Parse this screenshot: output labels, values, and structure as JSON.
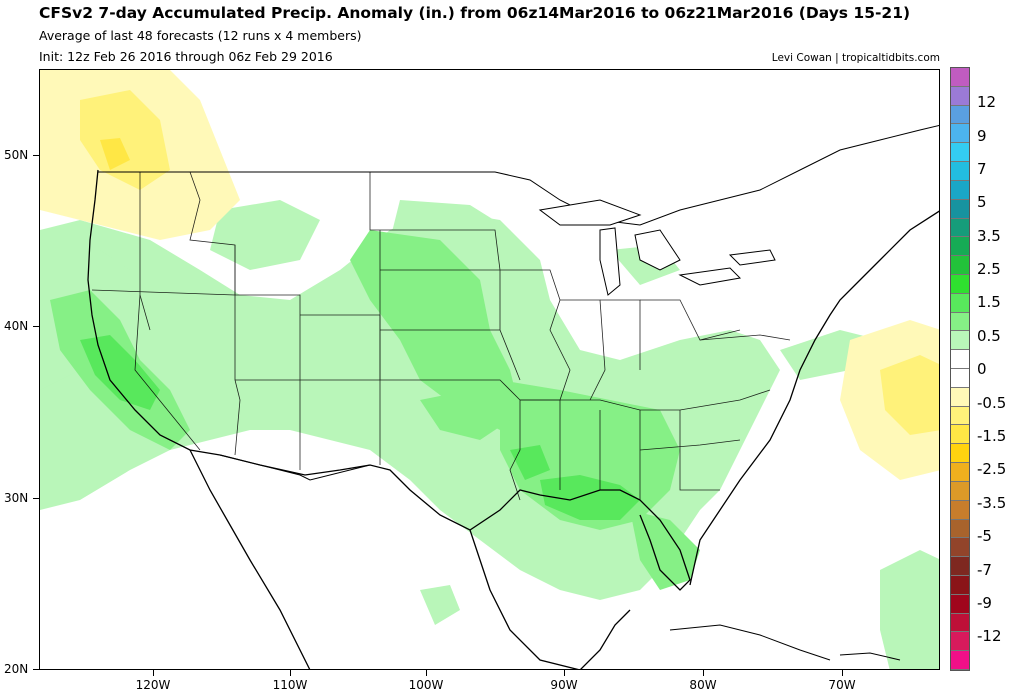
{
  "header": {
    "title": "CFSv2 7-day Accumulated Precip. Anomaly (in.) from 06z14Mar2016 to 06z21Mar2016 (Days 15-21)",
    "line2": "Average of last 48 forecasts (12 runs x 4 members)",
    "line3": "Init: 12z Feb 26 2016 through 06z Feb 29 2016",
    "credit": "Levi Cowan | tropicaltidbits.com"
  },
  "axes": {
    "lat_labels": [
      "50N",
      "40N",
      "30N",
      "20N"
    ],
    "lon_labels": [
      "120W",
      "110W",
      "100W",
      "90W",
      "80W",
      "70W"
    ]
  },
  "colorbar": {
    "labels": [
      "12",
      "9",
      "7",
      "5",
      "3.5",
      "2.5",
      "1.5",
      "0.5",
      "0",
      "-0.5",
      "-1.5",
      "-2.5",
      "-3.5",
      "-5",
      "-7",
      "-9",
      "-12"
    ],
    "colors": [
      "#c05cc0",
      "#9b7ad6",
      "#5a9fe0",
      "#4cb4ee",
      "#33ccf2",
      "#22bde0",
      "#1aa7c6",
      "#17939f",
      "#169c7a",
      "#16ab55",
      "#22c23a",
      "#2fe02f",
      "#58e85c",
      "#86f086",
      "#b9f6b9",
      "#ffffff",
      "#ffffff",
      "#fff9b8",
      "#fff27a",
      "#ffe745",
      "#ffd30f",
      "#efb01e",
      "#dc9a28",
      "#c77d2c",
      "#a8632c",
      "#92442a",
      "#7e2820",
      "#8a1418",
      "#a0061c",
      "#be1038",
      "#d81a5c",
      "#f01088"
    ]
  },
  "colors": {
    "light_green": "#b9f6b9",
    "mid_green": "#86f086",
    "green": "#58e85c",
    "dark_green": "#2fe02f",
    "light_yellow": "#fff9b8",
    "yellow": "#fff27a",
    "gold": "#ffe745",
    "border": "#000000"
  }
}
